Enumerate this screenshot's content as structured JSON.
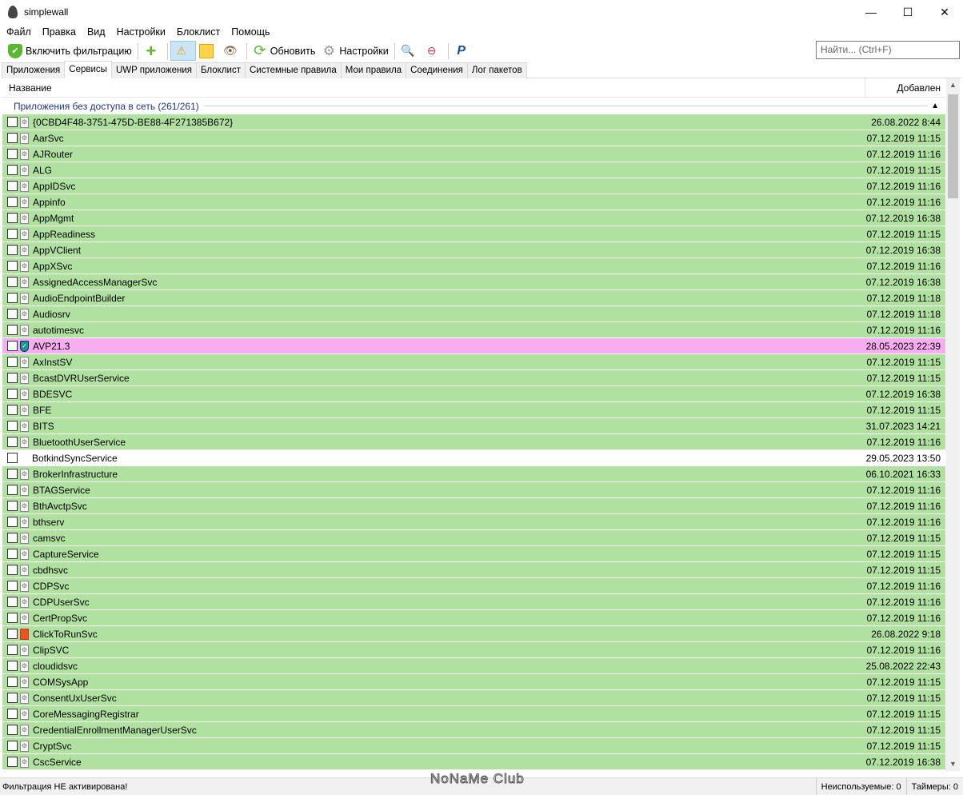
{
  "window": {
    "title": "simplewall",
    "minimize": "—",
    "maximize": "☐",
    "close": "✕"
  },
  "menu": [
    "Файл",
    "Правка",
    "Вид",
    "Настройки",
    "Блоклист",
    "Помощь"
  ],
  "toolbar": {
    "enable_filter": "Включить фильтрацию",
    "refresh": "Обновить",
    "settings": "Настройки",
    "search_placeholder": "Найти... (Ctrl+F)"
  },
  "tabs": [
    "Приложения",
    "Сервисы",
    "UWP приложения",
    "Блоклист",
    "Системные правила",
    "Мои правила",
    "Соединения",
    "Лог пакетов"
  ],
  "selected_tab": "Сервисы",
  "columns": {
    "name": "Название",
    "added": "Добавлен"
  },
  "group": {
    "label": "Приложения без доступа в сеть (261/261)"
  },
  "colors": {
    "allowed_green": "#b1e1a1",
    "special_pink": "#f7aef0",
    "normal": "#ffffff"
  },
  "rows": [
    {
      "name": "{0CBD4F48-3751-475D-BE88-4F271385B672}",
      "date": "26.08.2022 8:44",
      "color": "green",
      "icon": "file-icon"
    },
    {
      "name": "AarSvc",
      "date": "07.12.2019 11:15",
      "color": "green",
      "icon": "file-icon"
    },
    {
      "name": "AJRouter",
      "date": "07.12.2019 11:16",
      "color": "green",
      "icon": "file-icon"
    },
    {
      "name": "ALG",
      "date": "07.12.2019 11:15",
      "color": "green",
      "icon": "file-icon"
    },
    {
      "name": "AppIDSvc",
      "date": "07.12.2019 11:16",
      "color": "green",
      "icon": "file-icon"
    },
    {
      "name": "Appinfo",
      "date": "07.12.2019 11:16",
      "color": "green",
      "icon": "file-icon"
    },
    {
      "name": "AppMgmt",
      "date": "07.12.2019 16:38",
      "color": "green",
      "icon": "file-icon"
    },
    {
      "name": "AppReadiness",
      "date": "07.12.2019 11:15",
      "color": "green",
      "icon": "file-icon"
    },
    {
      "name": "AppVClient",
      "date": "07.12.2019 16:38",
      "color": "green",
      "icon": "file-icon"
    },
    {
      "name": "AppXSvc",
      "date": "07.12.2019 11:16",
      "color": "green",
      "icon": "file-icon"
    },
    {
      "name": "AssignedAccessManagerSvc",
      "date": "07.12.2019 16:38",
      "color": "green",
      "icon": "file-icon"
    },
    {
      "name": "AudioEndpointBuilder",
      "date": "07.12.2019 11:18",
      "color": "green",
      "icon": "file-icon"
    },
    {
      "name": "Audiosrv",
      "date": "07.12.2019 11:18",
      "color": "green",
      "icon": "file-icon"
    },
    {
      "name": "autotimesvc",
      "date": "07.12.2019 11:16",
      "color": "green",
      "icon": "file-icon"
    },
    {
      "name": "AVP21.3",
      "date": "28.05.2023 22:39",
      "color": "pink",
      "icon": "shield-icon"
    },
    {
      "name": "AxInstSV",
      "date": "07.12.2019 11:15",
      "color": "green",
      "icon": "file-icon"
    },
    {
      "name": "BcastDVRUserService",
      "date": "07.12.2019 11:15",
      "color": "green",
      "icon": "file-icon"
    },
    {
      "name": "BDESVC",
      "date": "07.12.2019 16:38",
      "color": "green",
      "icon": "file-icon"
    },
    {
      "name": "BFE",
      "date": "07.12.2019 11:15",
      "color": "green",
      "icon": "file-icon"
    },
    {
      "name": "BITS",
      "date": "31.07.2023 14:21",
      "color": "green",
      "icon": "file-icon"
    },
    {
      "name": "BluetoothUserService",
      "date": "07.12.2019 11:16",
      "color": "green",
      "icon": "file-icon"
    },
    {
      "name": "BotkindSyncService",
      "date": "29.05.2023 13:50",
      "color": "white",
      "icon": "none"
    },
    {
      "name": "BrokerInfrastructure",
      "date": "06.10.2021 16:33",
      "color": "green",
      "icon": "file-icon"
    },
    {
      "name": "BTAGService",
      "date": "07.12.2019 11:16",
      "color": "green",
      "icon": "file-icon"
    },
    {
      "name": "BthAvctpSvc",
      "date": "07.12.2019 11:16",
      "color": "green",
      "icon": "file-icon"
    },
    {
      "name": "bthserv",
      "date": "07.12.2019 11:16",
      "color": "green",
      "icon": "file-icon"
    },
    {
      "name": "camsvc",
      "date": "07.12.2019 11:15",
      "color": "green",
      "icon": "file-icon"
    },
    {
      "name": "CaptureService",
      "date": "07.12.2019 11:15",
      "color": "green",
      "icon": "file-icon"
    },
    {
      "name": "cbdhsvc",
      "date": "07.12.2019 11:15",
      "color": "green",
      "icon": "file-icon"
    },
    {
      "name": "CDPSvc",
      "date": "07.12.2019 11:16",
      "color": "green",
      "icon": "file-icon"
    },
    {
      "name": "CDPUserSvc",
      "date": "07.12.2019 11:16",
      "color": "green",
      "icon": "file-icon"
    },
    {
      "name": "CertPropSvc",
      "date": "07.12.2019 11:16",
      "color": "green",
      "icon": "file-icon"
    },
    {
      "name": "ClickToRunSvc",
      "date": "26.08.2022 9:18",
      "color": "green",
      "icon": "office-icon"
    },
    {
      "name": "ClipSVC",
      "date": "07.12.2019 11:16",
      "color": "green",
      "icon": "file-icon"
    },
    {
      "name": "cloudidsvc",
      "date": "25.08.2022 22:43",
      "color": "green",
      "icon": "file-icon"
    },
    {
      "name": "COMSysApp",
      "date": "07.12.2019 11:15",
      "color": "green",
      "icon": "file-icon"
    },
    {
      "name": "ConsentUxUserSvc",
      "date": "07.12.2019 11:15",
      "color": "green",
      "icon": "file-icon"
    },
    {
      "name": "CoreMessagingRegistrar",
      "date": "07.12.2019 11:15",
      "color": "green",
      "icon": "file-icon"
    },
    {
      "name": "CredentialEnrollmentManagerUserSvc",
      "date": "07.12.2019 11:15",
      "color": "green",
      "icon": "file-icon"
    },
    {
      "name": "CryptSvc",
      "date": "07.12.2019 11:15",
      "color": "green",
      "icon": "file-icon"
    },
    {
      "name": "CscService",
      "date": "07.12.2019 16:38",
      "color": "green",
      "icon": "file-icon"
    }
  ],
  "status": {
    "message": "Фильтрация НЕ активирована!",
    "unused": "Неиспользуемые: 0",
    "timers": "Таймеры: 0"
  },
  "watermark": "NoNaMe Club"
}
